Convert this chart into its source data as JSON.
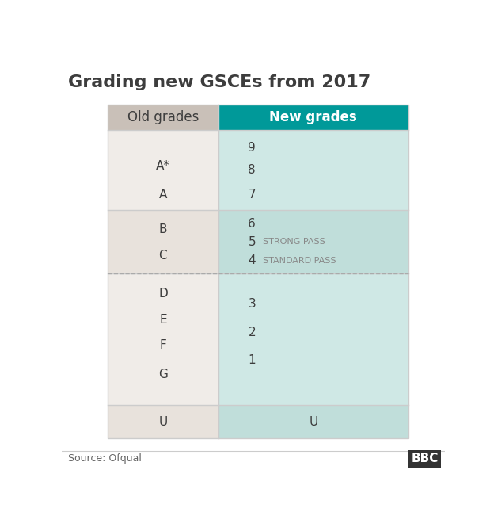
{
  "title": "Grading new GSCEs from 2017",
  "source": "Source: Ofqual",
  "bbc_logo": "BBC",
  "header_left": "Old grades",
  "header_right": "New grades",
  "header_left_bg": "#c9c0b8",
  "header_right_bg": "#009999",
  "header_text_color_left": "#3d3d3d",
  "header_text_color_right": "#ffffff",
  "row_bg_left_odd": "#f0ece8",
  "row_bg_left_even": "#e8e2dc",
  "row_bg_right_odd": "#cfe8e5",
  "row_bg_right_even": "#c0deda",
  "dashed_line_color": "#aaaaaa",
  "text_color": "#3d3d3d",
  "annotation_color": "#888888",
  "source_color": "#666666",
  "border_color": "#cccccc",
  "background_color": "#ffffff",
  "title_fontsize": 16,
  "header_fontsize": 12,
  "cell_fontsize": 11,
  "annotation_fontsize": 8,
  "source_fontsize": 9,
  "bbc_fontsize": 11,
  "fig_width": 6.24,
  "fig_height": 6.65,
  "dpi": 100
}
